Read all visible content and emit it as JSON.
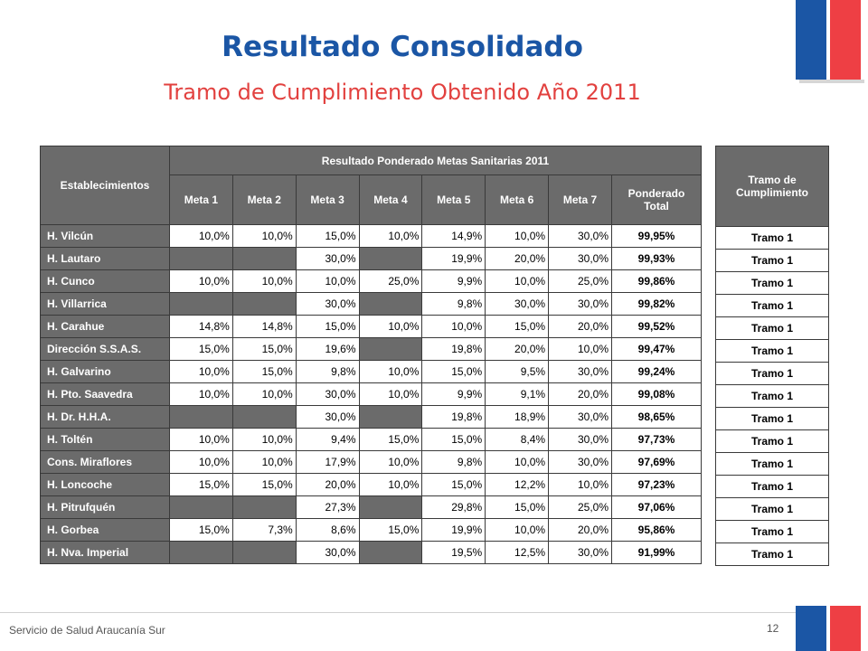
{
  "title": "Resultado Consolidado",
  "subtitle": "Tramo de Cumplimiento Obtenido Año 2011",
  "colors": {
    "title": "#1b56a5",
    "subtitle": "#e2413f",
    "header_fill": "#6b6b6b",
    "flag_blue": "#1b56a5",
    "flag_red": "#ee3f44"
  },
  "table": {
    "col_establecimientos": "Establecimientos",
    "group_header": "Resultado Ponderado Metas Sanitarias 2011",
    "metas": [
      "Meta 1",
      "Meta 2",
      "Meta 3",
      "Meta 4",
      "Meta 5",
      "Meta 6",
      "Meta 7"
    ],
    "col_total": "Ponderado Total",
    "rows": [
      {
        "name": "H. Vilcún",
        "m": [
          "10,0%",
          "10,0%",
          "15,0%",
          "10,0%",
          "14,9%",
          "10,0%",
          "30,0%"
        ],
        "total": "99,95%"
      },
      {
        "name": "H. Lautaro",
        "m": [
          "",
          "",
          "30,0%",
          "",
          "19,9%",
          "20,0%",
          "30,0%"
        ],
        "total": "99,93%"
      },
      {
        "name": "H. Cunco",
        "m": [
          "10,0%",
          "10,0%",
          "10,0%",
          "25,0%",
          "9,9%",
          "10,0%",
          "25,0%"
        ],
        "total": "99,86%"
      },
      {
        "name": "H. Villarrica",
        "m": [
          "",
          "",
          "30,0%",
          "",
          "9,8%",
          "30,0%",
          "30,0%"
        ],
        "total": "99,82%"
      },
      {
        "name": "H. Carahue",
        "m": [
          "14,8%",
          "14,8%",
          "15,0%",
          "10,0%",
          "10,0%",
          "15,0%",
          "20,0%"
        ],
        "total": "99,52%"
      },
      {
        "name": "Dirección S.S.A.S.",
        "m": [
          "15,0%",
          "15,0%",
          "19,6%",
          "",
          "19,8%",
          "20,0%",
          "10,0%"
        ],
        "total": "99,47%"
      },
      {
        "name": "H. Galvarino",
        "m": [
          "10,0%",
          "15,0%",
          "9,8%",
          "10,0%",
          "15,0%",
          "9,5%",
          "30,0%"
        ],
        "total": "99,24%"
      },
      {
        "name": "H. Pto. Saavedra",
        "m": [
          "10,0%",
          "10,0%",
          "30,0%",
          "10,0%",
          "9,9%",
          "9,1%",
          "20,0%"
        ],
        "total": "99,08%"
      },
      {
        "name": "H. Dr. H.H.A.",
        "m": [
          "",
          "",
          "30,0%",
          "",
          "19,8%",
          "18,9%",
          "30,0%"
        ],
        "total": "98,65%"
      },
      {
        "name": "H. Toltén",
        "m": [
          "10,0%",
          "10,0%",
          "9,4%",
          "15,0%",
          "15,0%",
          "8,4%",
          "30,0%"
        ],
        "total": "97,73%"
      },
      {
        "name": "Cons. Miraflores",
        "m": [
          "10,0%",
          "10,0%",
          "17,9%",
          "10,0%",
          "9,8%",
          "10,0%",
          "30,0%"
        ],
        "total": "97,69%"
      },
      {
        "name": "H. Loncoche",
        "m": [
          "15,0%",
          "15,0%",
          "20,0%",
          "10,0%",
          "15,0%",
          "12,2%",
          "10,0%"
        ],
        "total": "97,23%"
      },
      {
        "name": "H. Pitrufquén",
        "m": [
          "",
          "",
          "27,3%",
          "",
          "29,8%",
          "15,0%",
          "25,0%"
        ],
        "total": "97,06%"
      },
      {
        "name": "H. Gorbea",
        "m": [
          "15,0%",
          "7,3%",
          "8,6%",
          "15,0%",
          "19,9%",
          "10,0%",
          "20,0%"
        ],
        "total": "95,86%"
      },
      {
        "name": "H. Nva. Imperial",
        "m": [
          "",
          "",
          "30,0%",
          "",
          "19,5%",
          "12,5%",
          "30,0%"
        ],
        "total": "91,99%"
      }
    ]
  },
  "tramo": {
    "header": "Tramo de Cumplimiento",
    "values": [
      "Tramo 1",
      "Tramo 1",
      "Tramo 1",
      "Tramo 1",
      "Tramo 1",
      "Tramo 1",
      "Tramo 1",
      "Tramo 1",
      "Tramo 1",
      "Tramo 1",
      "Tramo 1",
      "Tramo 1",
      "Tramo 1",
      "Tramo 1",
      "Tramo 1"
    ]
  },
  "footer": {
    "org": "Servicio de Salud Araucanía Sur",
    "page": "12"
  }
}
